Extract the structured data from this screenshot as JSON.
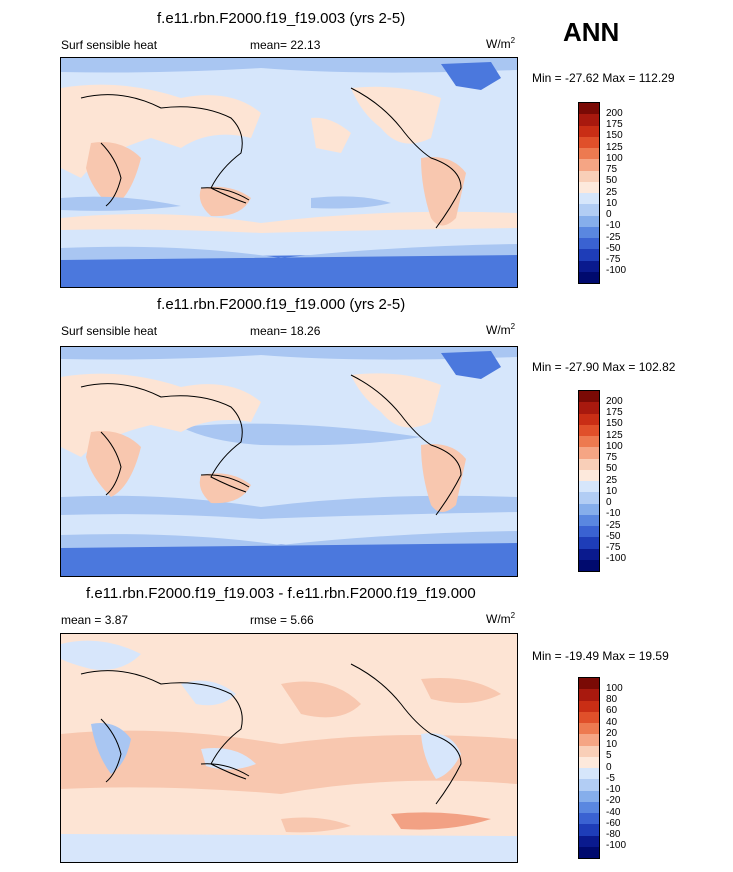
{
  "season": "ANN",
  "panels": [
    {
      "title": "f.e11.rbn.F2000.f19_f19.003 (yrs 2-5)",
      "left_label": "Surf sensible heat",
      "mid_label": "mean=  22.13",
      "units": "W/m",
      "units_sup": "2",
      "minmax": "Min = -27.62 Max = 112.29",
      "levels": [
        "200",
        "175",
        "150",
        "125",
        "100",
        "75",
        "50",
        "25",
        "10",
        "0",
        "-10",
        "-25",
        "-50",
        "-75",
        "-100"
      ]
    },
    {
      "title": "f.e11.rbn.F2000.f19_f19.000 (yrs 2-5)",
      "left_label": "Surf sensible heat",
      "mid_label": "mean=  18.26",
      "units": "W/m",
      "units_sup": "2",
      "minmax": "Min = -27.90 Max = 102.82",
      "levels": [
        "200",
        "175",
        "150",
        "125",
        "100",
        "75",
        "50",
        "25",
        "10",
        "0",
        "-10",
        "-25",
        "-50",
        "-75",
        "-100"
      ]
    },
    {
      "title": "f.e11.rbn.F2000.f19_f19.003 - f.e11.rbn.F2000.f19_f19.000",
      "left_label": "mean =   3.87",
      "mid_label": "rmse =   5.66",
      "units": "W/m",
      "units_sup": "2",
      "minmax": "Min = -19.49 Max =  19.59",
      "levels": [
        "100",
        "80",
        "60",
        "40",
        "20",
        "10",
        "5",
        "0",
        "-5",
        "-10",
        "-20",
        "-40",
        "-60",
        "-80",
        "-100"
      ]
    }
  ],
  "colors": {
    "ramp": [
      "#7a0a05",
      "#a8190e",
      "#c92e15",
      "#e0502a",
      "#ed7a50",
      "#f5a584",
      "#f9cfb8",
      "#fde9dc",
      "#d6e6fb",
      "#b2cdf4",
      "#86aeeb",
      "#5a87e0",
      "#3a62d2",
      "#1e3db8",
      "#0a1a8e",
      "#000a6e"
    ],
    "pos1": "#fde4d4",
    "pos2": "#f8c7af",
    "pos3": "#f2a184",
    "neg1": "#d7e6fb",
    "neg2": "#a9c6f2",
    "neg3": "#6b97e6",
    "neg4": "#4b78dd"
  }
}
